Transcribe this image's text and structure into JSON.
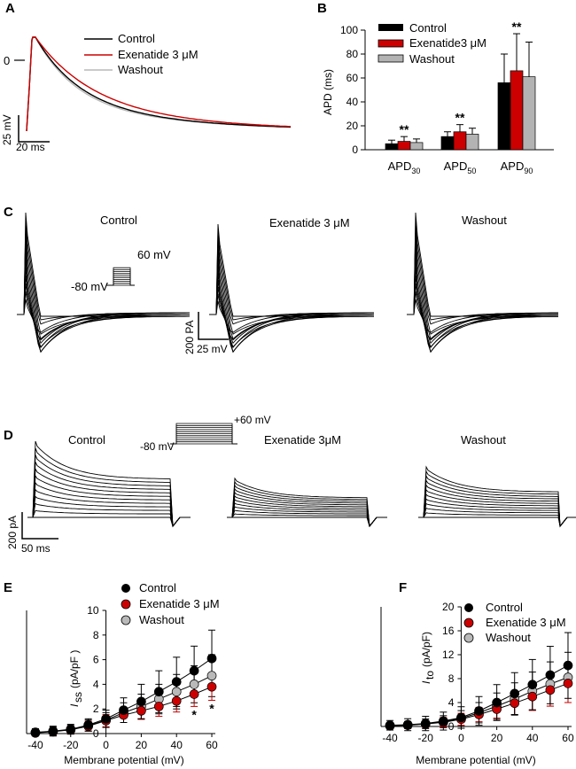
{
  "colors": {
    "control": "#000000",
    "exenatide": "#cc0000",
    "washout": "#b9b9b9",
    "washout_bar": "#b3b3b3",
    "exenatide_bar": "#cc0000",
    "control_bar": "#000000"
  },
  "panelA": {
    "label": "A",
    "zero_label": "0",
    "legend": [
      "Control",
      "Exenatide 3 μM",
      "Washout"
    ],
    "scale_v": "25 mV",
    "scale_t": "20 ms"
  },
  "panelB": {
    "label": "B",
    "legend": [
      "Control",
      "Exenatide3 μM",
      "Washout"
    ],
    "ylabel": "APD (ms)",
    "yticks": [
      "0",
      "20",
      "40",
      "60",
      "80",
      "100"
    ],
    "cat_main": [
      "APD",
      "APD",
      "APD"
    ],
    "cat_sub": [
      "30",
      "50",
      "90"
    ],
    "stars": [
      "**",
      "**",
      "**"
    ]
  },
  "panelC": {
    "label": "C",
    "titles": [
      "Control",
      "Exenatide 3 μM",
      "Washout"
    ],
    "protocol_hi": "60 mV",
    "protocol_lo": "-80 mV",
    "scale_i": "200 PA",
    "scale_t": "25 mV"
  },
  "panelD": {
    "label": "D",
    "titles": [
      "Control",
      "Exenatide 3μM",
      "Washout"
    ],
    "protocol_hi": "+60 mV",
    "protocol_lo": "-80 mV",
    "scale_i": "200 pA",
    "scale_t": "50 ms"
  },
  "panelE": {
    "label": "E",
    "legend": [
      "Control",
      "Exenatide 3 μM",
      "Washout"
    ],
    "ylabel_main": "I",
    "ylabel_sub": "ss",
    "ylabel_unit": "(pA/pF )",
    "xlabel": "Membrane potential (mV)",
    "xticks": [
      "-40",
      "-20",
      "0",
      "20",
      "40",
      "60"
    ],
    "yticks": [
      "0",
      "2",
      "4",
      "6",
      "8",
      "10"
    ],
    "star": "*"
  },
  "panelF": {
    "label": "F",
    "legend": [
      "Control",
      "Exenatide 3 μM",
      "Washout"
    ],
    "ylabel_main": "I",
    "ylabel_sub": "to",
    "ylabel_unit": "(pA/pF)",
    "xlabel": "Membrane potential (mV)",
    "xticks": [
      "-40",
      "-20",
      "0",
      "20",
      "40",
      "60"
    ],
    "yticks": [
      "0",
      "4",
      "8",
      "12",
      "16",
      "20"
    ]
  },
  "chart_data": [
    {
      "type": "bar",
      "panel": "B",
      "categories": [
        "APD30",
        "APD50",
        "APD90"
      ],
      "ylabel": "APD (ms)",
      "ylim": [
        0,
        100
      ],
      "series": [
        {
          "name": "Control",
          "values": [
            5,
            11,
            56
          ],
          "errors": [
            3,
            4,
            24
          ]
        },
        {
          "name": "Exenatide3 μM",
          "values": [
            7,
            15,
            66
          ],
          "errors": [
            4,
            6,
            31
          ]
        },
        {
          "name": "Washout",
          "values": [
            6,
            13,
            61
          ],
          "errors": [
            3,
            5,
            29
          ]
        }
      ],
      "annotations": [
        "**",
        "**",
        "**"
      ]
    },
    {
      "type": "scatter",
      "panel": "E",
      "x": [
        -40,
        -30,
        -20,
        -10,
        0,
        10,
        20,
        30,
        40,
        50,
        60
      ],
      "xlabel": "Membrane potential (mV)",
      "ylabel": "Iss (pA/pF )",
      "xlim": [
        -45,
        62
      ],
      "ylim": [
        0,
        10
      ],
      "series": [
        {
          "name": "Control",
          "values": [
            0.1,
            0.2,
            0.35,
            0.7,
            1.2,
            1.9,
            2.6,
            3.4,
            4.2,
            5.1,
            6.1
          ],
          "errors": [
            0.3,
            0.4,
            0.4,
            0.5,
            0.7,
            1.0,
            1.4,
            1.7,
            2.0,
            2.0,
            2.3
          ]
        },
        {
          "name": "Exenatide 3 μM",
          "values": [
            0.05,
            0.15,
            0.3,
            0.6,
            1.05,
            1.5,
            1.85,
            2.2,
            2.65,
            3.2,
            3.8
          ],
          "errors": [
            0.2,
            0.3,
            0.3,
            0.4,
            0.5,
            0.6,
            0.7,
            0.8,
            0.9,
            1.0,
            1.1
          ]
        },
        {
          "name": "Washout",
          "values": [
            0.08,
            0.18,
            0.32,
            0.65,
            1.1,
            1.7,
            2.2,
            2.8,
            3.4,
            4.0,
            4.7
          ],
          "errors": [
            0.25,
            0.35,
            0.35,
            0.45,
            0.6,
            0.8,
            1.0,
            1.2,
            1.4,
            1.5,
            1.7
          ]
        }
      ],
      "annotations": [
        {
          "x": 50,
          "text": "*"
        },
        {
          "x": 60,
          "text": "*"
        }
      ]
    },
    {
      "type": "scatter",
      "panel": "F",
      "x": [
        -40,
        -30,
        -20,
        -10,
        0,
        10,
        20,
        30,
        40,
        50,
        60
      ],
      "xlabel": "Membrane potential (mV)",
      "ylabel": "Ito (pA/pF)",
      "xlim": [
        -45,
        62
      ],
      "ylim": [
        0,
        20
      ],
      "series": [
        {
          "name": "Control",
          "values": [
            0.2,
            0.3,
            0.5,
            0.9,
            1.5,
            2.6,
            4.0,
            5.5,
            7.0,
            8.6,
            10.2
          ],
          "errors": [
            0.8,
            1.0,
            1.2,
            1.5,
            1.8,
            2.4,
            3.0,
            3.5,
            4.2,
            4.8,
            5.5
          ]
        },
        {
          "name": "Exenatide 3 μM",
          "values": [
            0.1,
            0.2,
            0.4,
            0.7,
            1.2,
            2.0,
            2.9,
            3.9,
            5.0,
            6.1,
            7.2
          ],
          "errors": [
            0.4,
            0.5,
            0.6,
            0.8,
            1.0,
            1.2,
            1.5,
            1.9,
            2.3,
            2.7,
            3.2
          ]
        },
        {
          "name": "Washout",
          "values": [
            0.15,
            0.25,
            0.45,
            0.8,
            1.35,
            2.3,
            3.4,
            4.6,
            5.9,
            7.1,
            8.2
          ],
          "errors": [
            0.5,
            0.6,
            0.8,
            1.0,
            1.3,
            1.7,
            2.2,
            2.7,
            3.2,
            3.7,
            4.2
          ]
        }
      ]
    }
  ]
}
